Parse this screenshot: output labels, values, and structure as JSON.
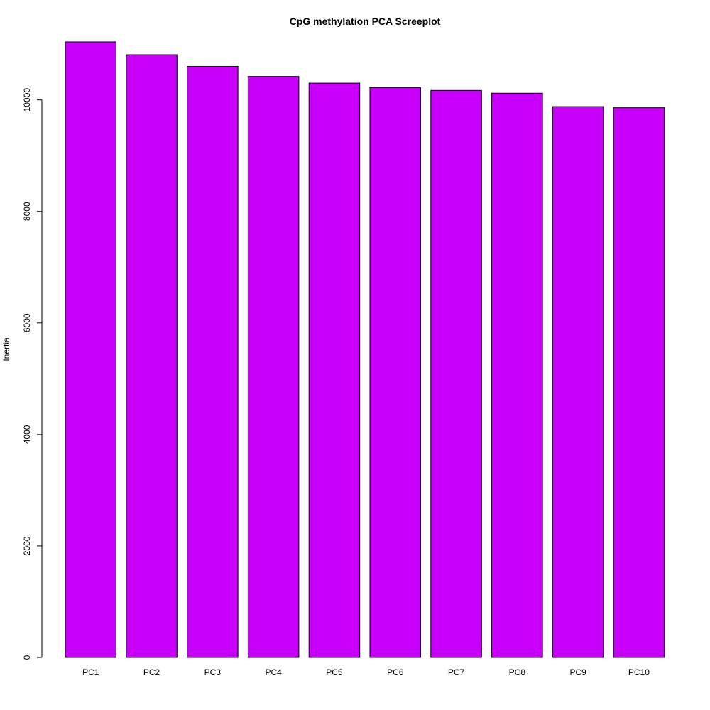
{
  "chart_data": {
    "type": "bar",
    "title": "CpG methylation PCA Screeplot",
    "xlabel": "",
    "ylabel": "Inertia",
    "categories": [
      "PC1",
      "PC2",
      "PC3",
      "PC4",
      "PC5",
      "PC6",
      "PC7",
      "PC8",
      "PC9",
      "PC10"
    ],
    "values": [
      11040,
      10810,
      10600,
      10420,
      10300,
      10220,
      10170,
      10120,
      9880,
      9860
    ],
    "yticks": [
      0,
      2000,
      4000,
      6000,
      8000,
      10000
    ],
    "ytick_labels": [
      "0",
      "2000",
      "4000",
      "6000",
      "8000",
      "10000"
    ],
    "ylim": [
      0,
      11040
    ],
    "grid": false,
    "legend": "none",
    "bar_color": "#c800fb"
  }
}
